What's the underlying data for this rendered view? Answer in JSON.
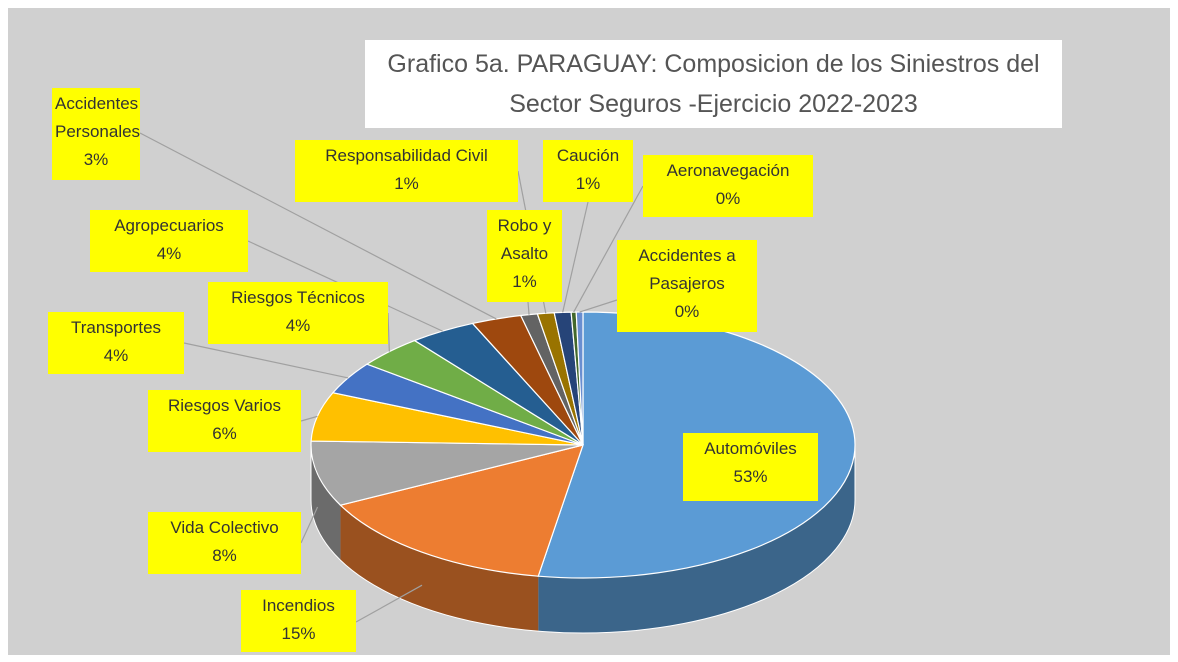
{
  "chart_data": {
    "type": "pie3d",
    "title": "Grafico 5a. PARAGUAY: Composicion de los Siniestros del Sector Seguros -Ejercicio 2022-2023",
    "categories": [
      "Automóviles",
      "Incendios",
      "Vida Colectivo",
      "Riesgos Varios",
      "Transportes",
      "Riesgos Técnicos",
      "Agropecuarios",
      "Accidentes Personales",
      "Robo y Asalto",
      "Responsabilidad Civil",
      "Caución",
      "Aeronavegación",
      "Accidentes a Pasajeros"
    ],
    "values": [
      53,
      15,
      8,
      6,
      4,
      4,
      4,
      3,
      1,
      1,
      1,
      0.3,
      0.4
    ],
    "value_labels": [
      "53%",
      "15%",
      "8%",
      "6%",
      "4%",
      "4%",
      "4%",
      "3%",
      "1%",
      "1%",
      "1%",
      "0%",
      "0%"
    ],
    "colors": [
      "#5b9bd5",
      "#ed7d31",
      "#a5a5a5",
      "#ffc000",
      "#4472c4",
      "#70ad47",
      "#255e91",
      "#9e480e",
      "#636363",
      "#997300",
      "#264478",
      "#43682b",
      "#698ed0"
    ]
  }
}
